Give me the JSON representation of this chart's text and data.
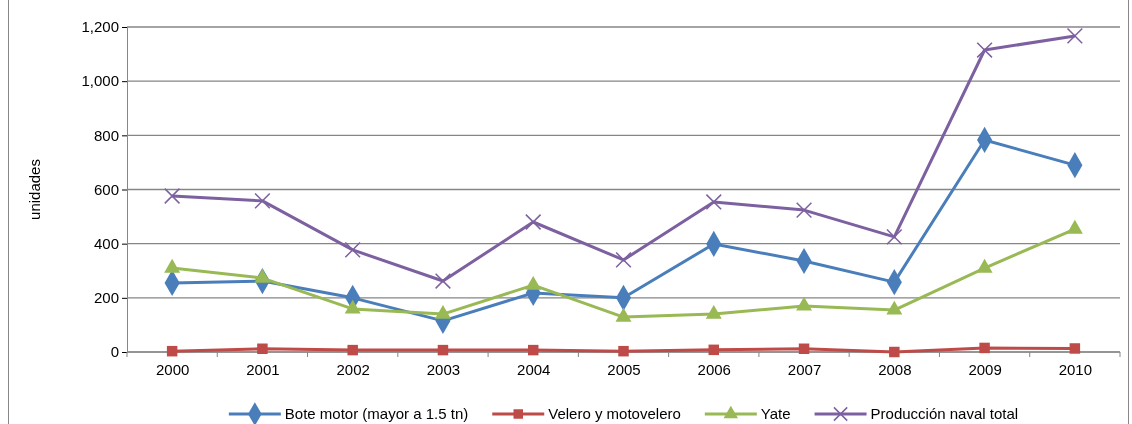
{
  "chart_data": {
    "type": "line",
    "ylabel": "unidades",
    "categories": [
      "2000",
      "2001",
      "2002",
      "2003",
      "2004",
      "2005",
      "2006",
      "2007",
      "2008",
      "2009",
      "2010"
    ],
    "series": [
      {
        "name": "Bote motor (mayor a 1.5 tn)",
        "color": "#4a7ebb",
        "marker": "diamond",
        "values": [
          255,
          262,
          200,
          115,
          218,
          200,
          399,
          336,
          258,
          783,
          690
        ]
      },
      {
        "name": "Velero y motovelero",
        "color": "#be4b48",
        "marker": "square",
        "values": [
          3,
          12,
          7,
          7,
          7,
          3,
          8,
          12,
          0,
          15,
          13
        ]
      },
      {
        "name": "Yate",
        "color": "#98b954",
        "marker": "triangle",
        "values": [
          310,
          273,
          159,
          140,
          247,
          129,
          140,
          170,
          155,
          310,
          454
        ]
      },
      {
        "name": "Producción naval total",
        "color": "#7d60a0",
        "marker": "cross",
        "values": [
          576,
          558,
          377,
          262,
          480,
          340,
          554,
          524,
          425,
          1115,
          1167
        ]
      }
    ],
    "ylim": [
      0,
      1200
    ],
    "yticks": [
      0,
      200,
      400,
      600,
      800,
      {
        "value": 1000,
        "label": "1,000"
      },
      {
        "value": 1200,
        "label": "1,200"
      }
    ],
    "grid": "y",
    "legend": "bottom"
  }
}
